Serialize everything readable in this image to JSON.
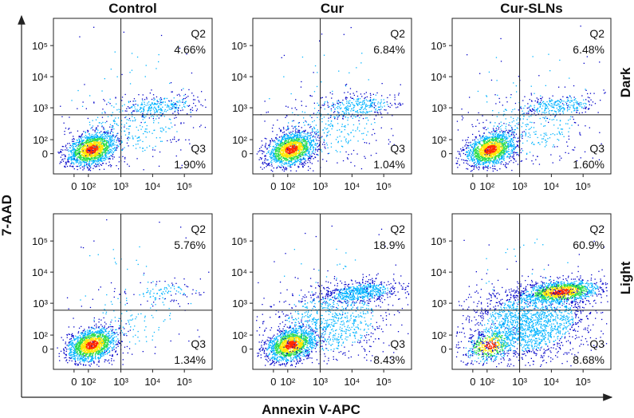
{
  "chart_data": {
    "type": "scatter",
    "title": "",
    "xlabel": "Annexin V-APC",
    "ylabel": "7-AAD",
    "column_titles": [
      "Control",
      "Cur",
      "Cur-SLNs"
    ],
    "row_titles": [
      "Dark",
      "Light"
    ],
    "x_ticks": [
      "0",
      "10²",
      "10³",
      "10⁴",
      "10⁵"
    ],
    "y_ticks": [
      "0",
      "10²",
      "10³",
      "10⁴",
      "10⁵"
    ],
    "x_gate": 1000,
    "y_gate": 500,
    "colormap": [
      "#0000c8",
      "#00b4ff",
      "#28dc46",
      "#ffe600",
      "#ff2800"
    ],
    "panels": [
      {
        "row": "Dark",
        "column": "Control",
        "q2_label": "Q2",
        "q2_value": "4.66%",
        "q3_label": "Q3",
        "q3_value": "1.90%",
        "Q2": 4.66,
        "Q3": 1.9
      },
      {
        "row": "Dark",
        "column": "Cur",
        "q2_label": "Q2",
        "q2_value": "6.84%",
        "q3_label": "Q3",
        "q3_value": "1.04%",
        "Q2": 6.84,
        "Q3": 1.04
      },
      {
        "row": "Dark",
        "column": "Cur-SLNs",
        "q2_label": "Q2",
        "q2_value": "6.48%",
        "q3_label": "Q3",
        "q3_value": "1.60%",
        "Q2": 6.48,
        "Q3": 1.6
      },
      {
        "row": "Light",
        "column": "Control",
        "q2_label": "Q2",
        "q2_value": "5.76%",
        "q3_label": "Q3",
        "q3_value": "1.34%",
        "Q2": 5.76,
        "Q3": 1.34
      },
      {
        "row": "Light",
        "column": "Cur",
        "q2_label": "Q2",
        "q2_value": "18.9%",
        "q3_label": "Q3",
        "q3_value": "8.43%",
        "Q2": 18.9,
        "Q3": 8.43
      },
      {
        "row": "Light",
        "column": "Cur-SLNs",
        "q2_label": "Q2",
        "q2_value": "60.9%",
        "q3_label": "Q3",
        "q3_value": "8.68%",
        "Q2": 60.9,
        "Q3": 8.68
      }
    ]
  }
}
